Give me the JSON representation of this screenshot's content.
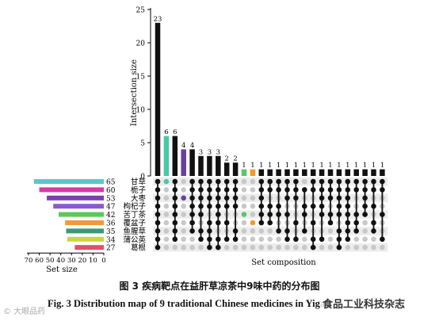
{
  "chart_data": {
    "type": "bar",
    "chart_kind": "upset",
    "top": {
      "ylabel": "Intersection size",
      "ylim": [
        0,
        25
      ],
      "yticks": [
        0,
        5,
        10,
        15,
        20,
        25
      ],
      "values": [
        23,
        6,
        6,
        4,
        4,
        3,
        3,
        3,
        2,
        2,
        1,
        1,
        1,
        1,
        1,
        1,
        1,
        1,
        1,
        1,
        1,
        1,
        1,
        1,
        1,
        1,
        1
      ],
      "colors": [
        "#111111",
        "#48c9a8",
        "#111111",
        "#6a3fa0",
        "#111111",
        "#111111",
        "#111111",
        "#111111",
        "#111111",
        "#111111",
        "#5ec46a",
        "#f39a28",
        "#111111",
        "#111111",
        "#111111",
        "#111111",
        "#111111",
        "#111111",
        "#111111",
        "#111111",
        "#111111",
        "#111111",
        "#111111",
        "#111111",
        "#111111",
        "#111111",
        "#111111"
      ]
    },
    "sets": {
      "names": [
        "甘草",
        "栀子",
        "大枣",
        "枸杞子",
        "苦丁茶",
        "覆盆子",
        "鱼腥草",
        "蒲公英",
        "葛根"
      ],
      "sizes": [
        65,
        60,
        53,
        47,
        42,
        36,
        35,
        34,
        27
      ],
      "colors": [
        "#5bc8c8",
        "#d63aa6",
        "#7b3fb0",
        "#8a5ad0",
        "#5ac85a",
        "#f09a3a",
        "#3a9a70",
        "#c8d840",
        "#e0506a"
      ],
      "xlabel": "Set size",
      "xticks": [
        70,
        60,
        50,
        40,
        30,
        20,
        10,
        0
      ]
    },
    "matrix": {
      "xlabel": "Set composition",
      "columns": [
        [
          0,
          1,
          2,
          3,
          4,
          5,
          6,
          7,
          8
        ],
        [
          0
        ],
        [
          0,
          1,
          2,
          3,
          4,
          5,
          6,
          7
        ],
        [
          2
        ],
        [
          0,
          1,
          2,
          3,
          4,
          5,
          6
        ],
        [
          0,
          1,
          2,
          3,
          4,
          6,
          7
        ],
        [
          0,
          1,
          2,
          3,
          5,
          6,
          7,
          8
        ],
        [
          0,
          1,
          2,
          3,
          4,
          5,
          7,
          8
        ],
        [
          0,
          1,
          2,
          3,
          5,
          7
        ],
        [
          0,
          1,
          2,
          3,
          6,
          7
        ],
        [
          4
        ],
        [
          5
        ],
        [
          0,
          1,
          2,
          3,
          4,
          5
        ],
        [
          0,
          1,
          3,
          4,
          5
        ],
        [
          0,
          1,
          3,
          4,
          6
        ],
        [
          0,
          1,
          2,
          4,
          6,
          7
        ],
        [
          0,
          1,
          2,
          5,
          7
        ],
        [
          1,
          3,
          4,
          6
        ],
        [
          0,
          1,
          3,
          5,
          7,
          8
        ],
        [
          0,
          1,
          2,
          3,
          4,
          7
        ],
        [
          0,
          1,
          2,
          4,
          5
        ],
        [
          0,
          1,
          2,
          3,
          4,
          6,
          7,
          8
        ],
        [
          0,
          1,
          2,
          3,
          4,
          5,
          6,
          7
        ],
        [
          0,
          1,
          4,
          5,
          6
        ],
        [
          0,
          1,
          2,
          3,
          4
        ],
        [
          0,
          1,
          3,
          5,
          6
        ],
        [
          0,
          1,
          4,
          7
        ]
      ],
      "dot_colors": {
        "1": "#48c9a8",
        "3": "#6a3fa0",
        "10": "#5ec46a",
        "11": "#f39a28"
      }
    }
  },
  "caption": {
    "cn": "图 3   疾病靶点在益肝草凉茶中9味中药的分布图",
    "en": "Fig. 3   Distribution map of 9 traditional Chinese medicines in Yiga..."
  },
  "watermark": {
    "left": "© 大眼品药",
    "right": "食品工业科技杂志"
  }
}
